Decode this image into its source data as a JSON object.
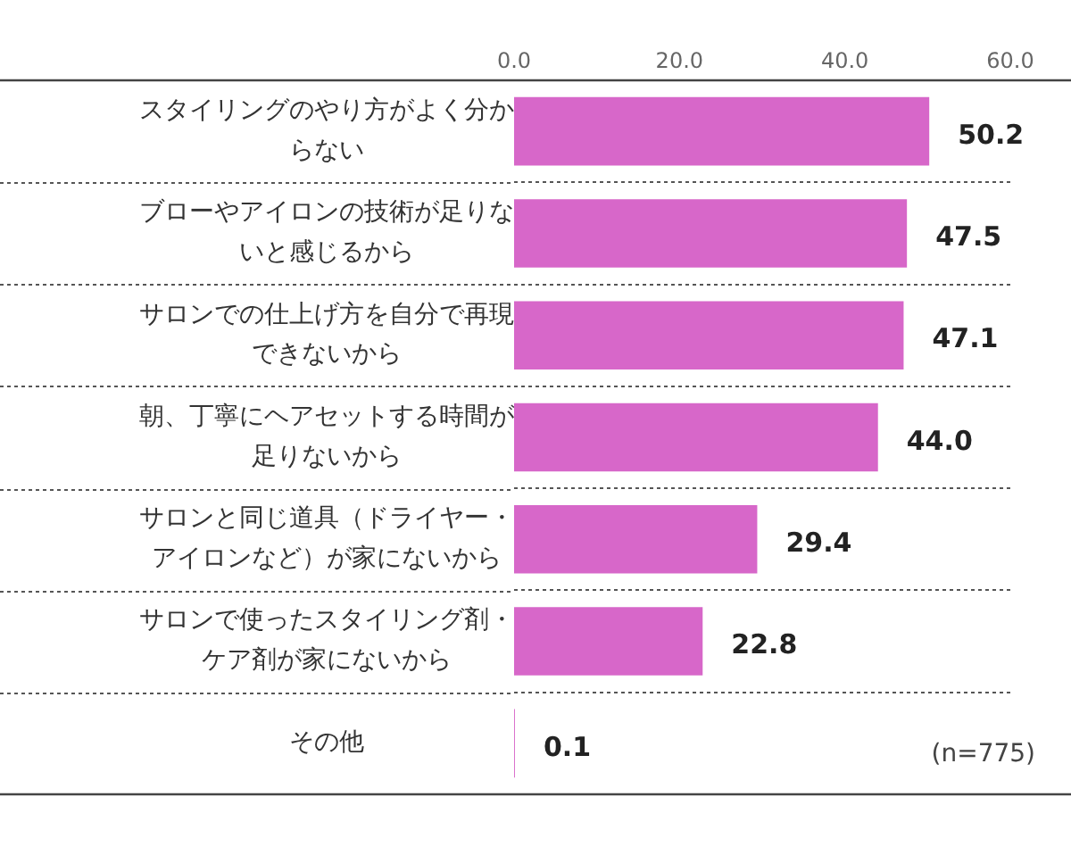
{
  "chart_data": {
    "type": "bar",
    "orientation": "horizontal",
    "categories": [
      "スタイリングのやり方がよく分からない",
      "ブローやアイロンの技術が足りないと感じるから",
      "サロンでの仕上げ方を自分で再現できないから",
      "朝、丁寧にヘアセットする時間が足りないから",
      "サロンと同じ道具（ドライヤー・アイロンなど）が家にないから",
      "サロンで使ったスタイリング剤・ケア剤が家にないから",
      "その他"
    ],
    "values": [
      50.2,
      47.5,
      47.1,
      44.0,
      29.4,
      22.8,
      0.1
    ],
    "value_labels": [
      "50.2",
      "47.5",
      "47.1",
      "44.0",
      "29.4",
      "22.8",
      "0.1"
    ],
    "color": "#d767c9",
    "xlim": [
      0,
      60
    ],
    "xticks": [
      {
        "value": 0,
        "label": "0.0"
      },
      {
        "value": 20,
        "label": "20.0"
      },
      {
        "value": 40,
        "label": "40.0"
      },
      {
        "value": 60,
        "label": "60.0"
      }
    ],
    "grid": "y",
    "annotations": [
      "(n=775)"
    ]
  }
}
